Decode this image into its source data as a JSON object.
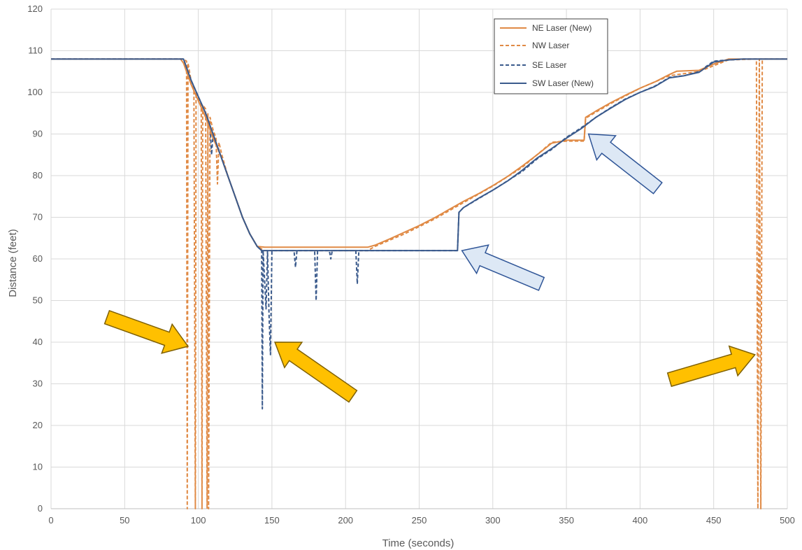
{
  "chart_data": {
    "type": "line",
    "xlabel": "Time (seconds)",
    "ylabel": "Distance (feet)",
    "xlim": [
      0,
      500
    ],
    "ylim": [
      0,
      120
    ],
    "xticks": [
      0,
      50,
      100,
      150,
      200,
      250,
      300,
      350,
      400,
      450,
      500
    ],
    "yticks": [
      0,
      10,
      20,
      30,
      40,
      50,
      60,
      70,
      80,
      90,
      100,
      110,
      120
    ],
    "grid": true,
    "legend_position": "top-right",
    "series": [
      {
        "name": "NE Laser (New)",
        "color": "#e08a45",
        "style": "solid",
        "points": [
          [
            0,
            108
          ],
          [
            88,
            108
          ],
          [
            90,
            107
          ],
          [
            95,
            102
          ],
          [
            100,
            98
          ],
          [
            105,
            94
          ],
          [
            110,
            89
          ],
          [
            115,
            85
          ],
          [
            120,
            80
          ],
          [
            125,
            75
          ],
          [
            130,
            70
          ],
          [
            135,
            66
          ],
          [
            140,
            63
          ],
          [
            145,
            62.8
          ],
          [
            150,
            62.8
          ],
          [
            200,
            62.8
          ],
          [
            215,
            62.8
          ],
          [
            220,
            63.3
          ],
          [
            230,
            64.8
          ],
          [
            240,
            66.4
          ],
          [
            250,
            68
          ],
          [
            260,
            69.8
          ],
          [
            270,
            71.8
          ],
          [
            280,
            73.8
          ],
          [
            290,
            75.6
          ],
          [
            300,
            77.6
          ],
          [
            310,
            79.8
          ],
          [
            320,
            82.3
          ],
          [
            330,
            85
          ],
          [
            340,
            87.8
          ],
          [
            350,
            88.5
          ],
          [
            360,
            88.5
          ],
          [
            362,
            88.5
          ],
          [
            363,
            94
          ],
          [
            370,
            95.5
          ],
          [
            380,
            97.5
          ],
          [
            390,
            99.3
          ],
          [
            400,
            101
          ],
          [
            410,
            102.5
          ],
          [
            420,
            104.3
          ],
          [
            425,
            105.1
          ],
          [
            440,
            105.3
          ],
          [
            450,
            106.8
          ],
          [
            460,
            108
          ],
          [
            470,
            108
          ],
          [
            480,
            108
          ],
          [
            500,
            108
          ]
        ]
      },
      {
        "name": "NW Laser",
        "color": "#e08a45",
        "style": "dashed",
        "points": [
          [
            0,
            108
          ],
          [
            90,
            108
          ],
          [
            92,
            107.5
          ],
          [
            92.5,
            0
          ],
          [
            93,
            107
          ],
          [
            95,
            103
          ],
          [
            97,
            101
          ],
          [
            98,
            0
          ],
          [
            98.5,
            100
          ],
          [
            100,
            98.5
          ],
          [
            102,
            97
          ],
          [
            102.5,
            0
          ],
          [
            103,
            97
          ],
          [
            105,
            96
          ],
          [
            106,
            0
          ],
          [
            106.5,
            95
          ],
          [
            107,
            0
          ],
          [
            108,
            94
          ],
          [
            110,
            91
          ],
          [
            112,
            89
          ],
          [
            113,
            78
          ],
          [
            114,
            88
          ],
          [
            116,
            85
          ],
          [
            120,
            80
          ],
          [
            125,
            75
          ],
          [
            130,
            70
          ],
          [
            135,
            66
          ],
          [
            140,
            63
          ],
          [
            145,
            62
          ],
          [
            160,
            62
          ],
          [
            200,
            62
          ],
          [
            215,
            62
          ],
          [
            220,
            63
          ],
          [
            240,
            66
          ],
          [
            260,
            69.5
          ],
          [
            280,
            73.5
          ],
          [
            300,
            77.5
          ],
          [
            320,
            82
          ],
          [
            340,
            88
          ],
          [
            350,
            88.3
          ],
          [
            362,
            88.3
          ],
          [
            363,
            93.8
          ],
          [
            380,
            97.3
          ],
          [
            400,
            101
          ],
          [
            420,
            104
          ],
          [
            440,
            105
          ],
          [
            460,
            107.8
          ],
          [
            479,
            108
          ],
          [
            480,
            0
          ],
          [
            481,
            108
          ],
          [
            482,
            0
          ],
          [
            483,
            108
          ],
          [
            500,
            108
          ]
        ]
      },
      {
        "name": "SE Laser",
        "color": "#3a5a8c",
        "style": "dashed",
        "points": [
          [
            0,
            108
          ],
          [
            90,
            108
          ],
          [
            95,
            103
          ],
          [
            100,
            99
          ],
          [
            105,
            95
          ],
          [
            108,
            92
          ],
          [
            109,
            85
          ],
          [
            110,
            90
          ],
          [
            112,
            88
          ],
          [
            115,
            85
          ],
          [
            120,
            80
          ],
          [
            125,
            75
          ],
          [
            130,
            70
          ],
          [
            135,
            66
          ],
          [
            140,
            63
          ],
          [
            143,
            62
          ],
          [
            143.5,
            24
          ],
          [
            144,
            62
          ],
          [
            146,
            48
          ],
          [
            147,
            62
          ],
          [
            148,
            47
          ],
          [
            149,
            37
          ],
          [
            150,
            62
          ],
          [
            165,
            62
          ],
          [
            166,
            58
          ],
          [
            167,
            62
          ],
          [
            179,
            62
          ],
          [
            180,
            50
          ],
          [
            181,
            62
          ],
          [
            189,
            62
          ],
          [
            190,
            60
          ],
          [
            191,
            62
          ],
          [
            207,
            62
          ],
          [
            208,
            54
          ],
          [
            209,
            62
          ],
          [
            276,
            62
          ],
          [
            277,
            71.2
          ],
          [
            280,
            72.3
          ],
          [
            300,
            76.5
          ],
          [
            320,
            81
          ],
          [
            330,
            84
          ],
          [
            340,
            86.3
          ],
          [
            350,
            89.2
          ],
          [
            360,
            91.5
          ],
          [
            370,
            94
          ],
          [
            380,
            96.3
          ],
          [
            390,
            98.4
          ],
          [
            400,
            100
          ],
          [
            410,
            101.5
          ],
          [
            420,
            103.6
          ],
          [
            430,
            104
          ],
          [
            440,
            105
          ],
          [
            450,
            107.5
          ],
          [
            460,
            107.8
          ],
          [
            470,
            108
          ],
          [
            500,
            108
          ]
        ]
      },
      {
        "name": "SW Laser (New)",
        "color": "#3a5a8c",
        "style": "solid",
        "points": [
          [
            0,
            108
          ],
          [
            90,
            108
          ],
          [
            95,
            103
          ],
          [
            100,
            99
          ],
          [
            105,
            95
          ],
          [
            110,
            90
          ],
          [
            115,
            85
          ],
          [
            120,
            80
          ],
          [
            125,
            75
          ],
          [
            130,
            70
          ],
          [
            135,
            66
          ],
          [
            140,
            63
          ],
          [
            143,
            62
          ],
          [
            145,
            62
          ],
          [
            200,
            62
          ],
          [
            276,
            62
          ],
          [
            277,
            71.2
          ],
          [
            280,
            72.3
          ],
          [
            290,
            74.5
          ],
          [
            300,
            76.5
          ],
          [
            310,
            78.7
          ],
          [
            320,
            81.3
          ],
          [
            330,
            84.2
          ],
          [
            340,
            86.5
          ],
          [
            350,
            89
          ],
          [
            360,
            91.3
          ],
          [
            370,
            94
          ],
          [
            380,
            96.2
          ],
          [
            390,
            98.3
          ],
          [
            400,
            100
          ],
          [
            410,
            101.4
          ],
          [
            420,
            103.5
          ],
          [
            430,
            104
          ],
          [
            440,
            104.8
          ],
          [
            450,
            107.3
          ],
          [
            460,
            107.8
          ],
          [
            470,
            108
          ],
          [
            500,
            108
          ]
        ]
      }
    ],
    "annotations": [
      {
        "shape": "arrow",
        "color": "#ffc000",
        "tail": [
          38,
          46
        ],
        "head": [
          93,
          39
        ]
      },
      {
        "shape": "arrow",
        "color": "#ffc000",
        "tail": [
          205,
          27
        ],
        "head": [
          152,
          40
        ]
      },
      {
        "shape": "arrow",
        "color": "#ffc000",
        "tail": [
          420,
          31
        ],
        "head": [
          478,
          37
        ]
      },
      {
        "shape": "arrow",
        "color": "#dde8f5",
        "tail": [
          333,
          54
        ],
        "head": [
          279,
          62
        ]
      },
      {
        "shape": "arrow",
        "color": "#dde8f5",
        "tail": [
          412,
          77
        ],
        "head": [
          365,
          90
        ]
      }
    ]
  }
}
